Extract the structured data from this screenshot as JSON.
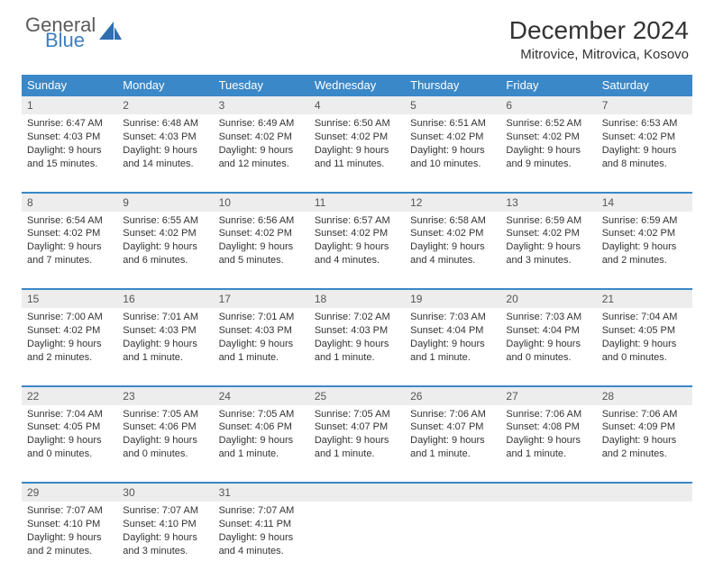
{
  "brand": {
    "word1": "General",
    "word2": "Blue",
    "icon_color": "#2f6fb0"
  },
  "title": "December 2024",
  "location": "Mitrovice, Mitrovica, Kosovo",
  "header_bg": "#3b88c8",
  "daynum_bg": "#ededed",
  "border_color": "#3b88c8",
  "weekdays": [
    "Sunday",
    "Monday",
    "Tuesday",
    "Wednesday",
    "Thursday",
    "Friday",
    "Saturday"
  ],
  "weeks": [
    [
      {
        "n": "1",
        "sr": "Sunrise: 6:47 AM",
        "ss": "Sunset: 4:03 PM",
        "d1": "Daylight: 9 hours",
        "d2": "and 15 minutes."
      },
      {
        "n": "2",
        "sr": "Sunrise: 6:48 AM",
        "ss": "Sunset: 4:03 PM",
        "d1": "Daylight: 9 hours",
        "d2": "and 14 minutes."
      },
      {
        "n": "3",
        "sr": "Sunrise: 6:49 AM",
        "ss": "Sunset: 4:02 PM",
        "d1": "Daylight: 9 hours",
        "d2": "and 12 minutes."
      },
      {
        "n": "4",
        "sr": "Sunrise: 6:50 AM",
        "ss": "Sunset: 4:02 PM",
        "d1": "Daylight: 9 hours",
        "d2": "and 11 minutes."
      },
      {
        "n": "5",
        "sr": "Sunrise: 6:51 AM",
        "ss": "Sunset: 4:02 PM",
        "d1": "Daylight: 9 hours",
        "d2": "and 10 minutes."
      },
      {
        "n": "6",
        "sr": "Sunrise: 6:52 AM",
        "ss": "Sunset: 4:02 PM",
        "d1": "Daylight: 9 hours",
        "d2": "and 9 minutes."
      },
      {
        "n": "7",
        "sr": "Sunrise: 6:53 AM",
        "ss": "Sunset: 4:02 PM",
        "d1": "Daylight: 9 hours",
        "d2": "and 8 minutes."
      }
    ],
    [
      {
        "n": "8",
        "sr": "Sunrise: 6:54 AM",
        "ss": "Sunset: 4:02 PM",
        "d1": "Daylight: 9 hours",
        "d2": "and 7 minutes."
      },
      {
        "n": "9",
        "sr": "Sunrise: 6:55 AM",
        "ss": "Sunset: 4:02 PM",
        "d1": "Daylight: 9 hours",
        "d2": "and 6 minutes."
      },
      {
        "n": "10",
        "sr": "Sunrise: 6:56 AM",
        "ss": "Sunset: 4:02 PM",
        "d1": "Daylight: 9 hours",
        "d2": "and 5 minutes."
      },
      {
        "n": "11",
        "sr": "Sunrise: 6:57 AM",
        "ss": "Sunset: 4:02 PM",
        "d1": "Daylight: 9 hours",
        "d2": "and 4 minutes."
      },
      {
        "n": "12",
        "sr": "Sunrise: 6:58 AM",
        "ss": "Sunset: 4:02 PM",
        "d1": "Daylight: 9 hours",
        "d2": "and 4 minutes."
      },
      {
        "n": "13",
        "sr": "Sunrise: 6:59 AM",
        "ss": "Sunset: 4:02 PM",
        "d1": "Daylight: 9 hours",
        "d2": "and 3 minutes."
      },
      {
        "n": "14",
        "sr": "Sunrise: 6:59 AM",
        "ss": "Sunset: 4:02 PM",
        "d1": "Daylight: 9 hours",
        "d2": "and 2 minutes."
      }
    ],
    [
      {
        "n": "15",
        "sr": "Sunrise: 7:00 AM",
        "ss": "Sunset: 4:02 PM",
        "d1": "Daylight: 9 hours",
        "d2": "and 2 minutes."
      },
      {
        "n": "16",
        "sr": "Sunrise: 7:01 AM",
        "ss": "Sunset: 4:03 PM",
        "d1": "Daylight: 9 hours",
        "d2": "and 1 minute."
      },
      {
        "n": "17",
        "sr": "Sunrise: 7:01 AM",
        "ss": "Sunset: 4:03 PM",
        "d1": "Daylight: 9 hours",
        "d2": "and 1 minute."
      },
      {
        "n": "18",
        "sr": "Sunrise: 7:02 AM",
        "ss": "Sunset: 4:03 PM",
        "d1": "Daylight: 9 hours",
        "d2": "and 1 minute."
      },
      {
        "n": "19",
        "sr": "Sunrise: 7:03 AM",
        "ss": "Sunset: 4:04 PM",
        "d1": "Daylight: 9 hours",
        "d2": "and 1 minute."
      },
      {
        "n": "20",
        "sr": "Sunrise: 7:03 AM",
        "ss": "Sunset: 4:04 PM",
        "d1": "Daylight: 9 hours",
        "d2": "and 0 minutes."
      },
      {
        "n": "21",
        "sr": "Sunrise: 7:04 AM",
        "ss": "Sunset: 4:05 PM",
        "d1": "Daylight: 9 hours",
        "d2": "and 0 minutes."
      }
    ],
    [
      {
        "n": "22",
        "sr": "Sunrise: 7:04 AM",
        "ss": "Sunset: 4:05 PM",
        "d1": "Daylight: 9 hours",
        "d2": "and 0 minutes."
      },
      {
        "n": "23",
        "sr": "Sunrise: 7:05 AM",
        "ss": "Sunset: 4:06 PM",
        "d1": "Daylight: 9 hours",
        "d2": "and 0 minutes."
      },
      {
        "n": "24",
        "sr": "Sunrise: 7:05 AM",
        "ss": "Sunset: 4:06 PM",
        "d1": "Daylight: 9 hours",
        "d2": "and 1 minute."
      },
      {
        "n": "25",
        "sr": "Sunrise: 7:05 AM",
        "ss": "Sunset: 4:07 PM",
        "d1": "Daylight: 9 hours",
        "d2": "and 1 minute."
      },
      {
        "n": "26",
        "sr": "Sunrise: 7:06 AM",
        "ss": "Sunset: 4:07 PM",
        "d1": "Daylight: 9 hours",
        "d2": "and 1 minute."
      },
      {
        "n": "27",
        "sr": "Sunrise: 7:06 AM",
        "ss": "Sunset: 4:08 PM",
        "d1": "Daylight: 9 hours",
        "d2": "and 1 minute."
      },
      {
        "n": "28",
        "sr": "Sunrise: 7:06 AM",
        "ss": "Sunset: 4:09 PM",
        "d1": "Daylight: 9 hours",
        "d2": "and 2 minutes."
      }
    ],
    [
      {
        "n": "29",
        "sr": "Sunrise: 7:07 AM",
        "ss": "Sunset: 4:10 PM",
        "d1": "Daylight: 9 hours",
        "d2": "and 2 minutes."
      },
      {
        "n": "30",
        "sr": "Sunrise: 7:07 AM",
        "ss": "Sunset: 4:10 PM",
        "d1": "Daylight: 9 hours",
        "d2": "and 3 minutes."
      },
      {
        "n": "31",
        "sr": "Sunrise: 7:07 AM",
        "ss": "Sunset: 4:11 PM",
        "d1": "Daylight: 9 hours",
        "d2": "and 4 minutes."
      },
      null,
      null,
      null,
      null
    ]
  ]
}
